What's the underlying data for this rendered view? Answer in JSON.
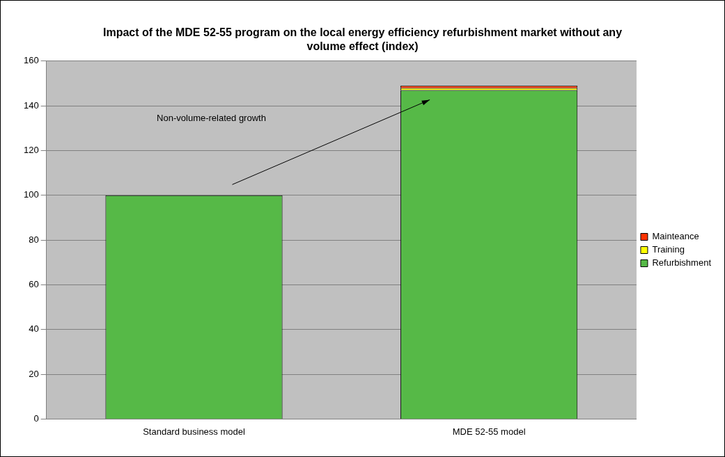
{
  "chart_data": {
    "type": "bar",
    "title": "Impact of the MDE 52-55 program on the local energy efficiency refurbishment market without any volume effect (index)",
    "categories": [
      "Standard business model",
      "MDE 52-55 model"
    ],
    "stacked": true,
    "series": [
      {
        "name": "Refurbishment",
        "color": "#56b947",
        "values": [
          100,
          147
        ]
      },
      {
        "name": "Training",
        "color": "#ffff00",
        "values": [
          0,
          1
        ]
      },
      {
        "name": "Mainteance",
        "color": "#ff3300",
        "values": [
          0,
          1
        ]
      }
    ],
    "ylim": [
      0,
      160
    ],
    "yticks": [
      0,
      20,
      40,
      60,
      80,
      100,
      120,
      140,
      160
    ],
    "grid": "y",
    "legend": "right",
    "annotations": [
      "Non-volume-related growth"
    ]
  }
}
